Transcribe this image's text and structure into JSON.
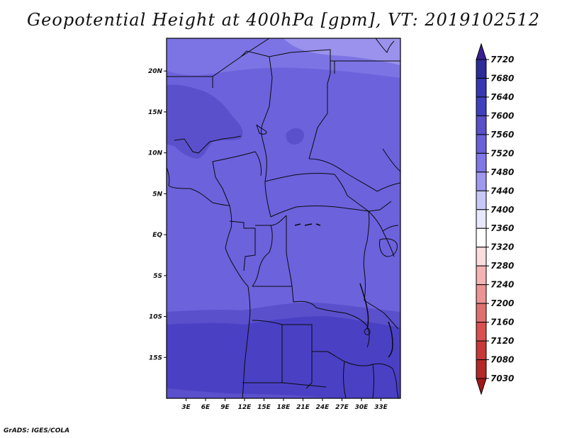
{
  "title": "Geopotential Height at 400hPa [gpm], VT: 2019102512",
  "credit": "GrADS: IGES/COLA",
  "map": {
    "lon_range": [
      0,
      36
    ],
    "lat_range": [
      -20,
      24
    ],
    "lat_ticks": [
      {
        "value": 20,
        "label": "20N"
      },
      {
        "value": 15,
        "label": "15N"
      },
      {
        "value": 10,
        "label": "10N"
      },
      {
        "value": 5,
        "label": "5N"
      },
      {
        "value": 0,
        "label": "EQ"
      },
      {
        "value": -5,
        "label": "5S"
      },
      {
        "value": -10,
        "label": "10S"
      },
      {
        "value": -15,
        "label": "15S"
      }
    ],
    "lon_ticks": [
      {
        "value": 3,
        "label": "3E"
      },
      {
        "value": 6,
        "label": "6E"
      },
      {
        "value": 9,
        "label": "9E"
      },
      {
        "value": 12,
        "label": "12E"
      },
      {
        "value": 15,
        "label": "15E"
      },
      {
        "value": 18,
        "label": "18E"
      },
      {
        "value": 21,
        "label": "21E"
      },
      {
        "value": 24,
        "label": "24E"
      },
      {
        "value": 27,
        "label": "27E"
      },
      {
        "value": 30,
        "label": "30E"
      },
      {
        "value": 33,
        "label": "33E"
      }
    ]
  },
  "colorbar": {
    "levels": [
      "7720",
      "7680",
      "7640",
      "7600",
      "7560",
      "7520",
      "7480",
      "7440",
      "7400",
      "7360",
      "7320",
      "7280",
      "7240",
      "7200",
      "7160",
      "7120",
      "7080",
      "7030"
    ],
    "colors": [
      "#3a1e96",
      "#2c2c9a",
      "#3838b0",
      "#4040c0",
      "#5a50c8",
      "#6a60d8",
      "#8078e8",
      "#a098f0",
      "#c8c8f8",
      "#e8e8fc",
      "#ffffff",
      "#fcdcdc",
      "#f4b4b4",
      "#ec9494",
      "#e07070",
      "#d85050",
      "#c83838",
      "#b42828",
      "#a01818"
    ]
  },
  "field_colors": {
    "band_7520": "#6c62dc",
    "band_7560": "#5a50cc",
    "band_7600": "#4a40c4",
    "band_7480": "#7c74e4",
    "band_7440": "#9a92ec"
  }
}
